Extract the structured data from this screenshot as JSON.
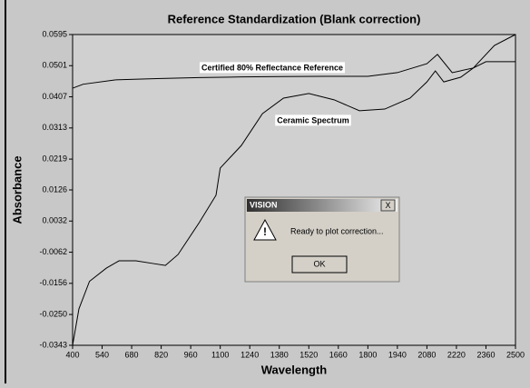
{
  "chart_data": {
    "type": "line",
    "title": "Reference Standardization (Blank correction)",
    "x_label": "Wavelength",
    "y_label": "Absorbance",
    "xlim": [
      400,
      2500
    ],
    "ylim": [
      -0.0343,
      0.0595
    ],
    "xticks": [
      400,
      540,
      680,
      820,
      960,
      1100,
      1240,
      1380,
      1520,
      1660,
      1800,
      1940,
      2080,
      2220,
      2360,
      2500
    ],
    "yticks": [
      0.0595,
      0.0501,
      0.0407,
      0.0313,
      0.0219,
      0.0126,
      0.0032,
      -0.0062,
      -0.0156,
      {
        "value": -0.025,
        "label": "-0.0250"
      },
      -0.0343
    ],
    "series": [
      {
        "name": "Certified 80% Reflectance Reference",
        "color": "#000000",
        "x": [
          400,
          450,
          600,
          800,
          1000,
          1200,
          1400,
          1600,
          1800,
          1940,
          2080,
          2130,
          2200,
          2300,
          2400,
          2500
        ],
        "values": [
          0.0433,
          0.0445,
          0.0458,
          0.0462,
          0.0465,
          0.0467,
          0.0468,
          0.0469,
          0.0469,
          0.048,
          0.0507,
          0.0535,
          0.048,
          0.0494,
          0.0562,
          0.0595
        ]
      },
      {
        "name": "Ceramic Spectrum",
        "color": "#000000",
        "x": [
          400,
          430,
          480,
          560,
          620,
          700,
          780,
          840,
          900,
          1000,
          1080,
          1100,
          1200,
          1300,
          1400,
          1520,
          1640,
          1760,
          1880,
          2000,
          2080,
          2120,
          2160,
          2240,
          2300,
          2360,
          2420,
          2500
        ],
        "values": [
          -0.0343,
          -0.0233,
          -0.015,
          -0.011,
          -0.0088,
          -0.0088,
          -0.0096,
          -0.0102,
          -0.0069,
          0.0027,
          0.011,
          0.0192,
          0.026,
          0.0356,
          0.0403,
          0.0417,
          0.0398,
          0.0365,
          0.037,
          0.0403,
          0.0452,
          0.0485,
          0.0452,
          0.0466,
          0.0494,
          0.0513,
          0.0513,
          0.0513
        ]
      }
    ]
  },
  "dialog": {
    "title": "VISION",
    "close": "X",
    "message": "Ready to plot correction...",
    "button": "OK"
  }
}
